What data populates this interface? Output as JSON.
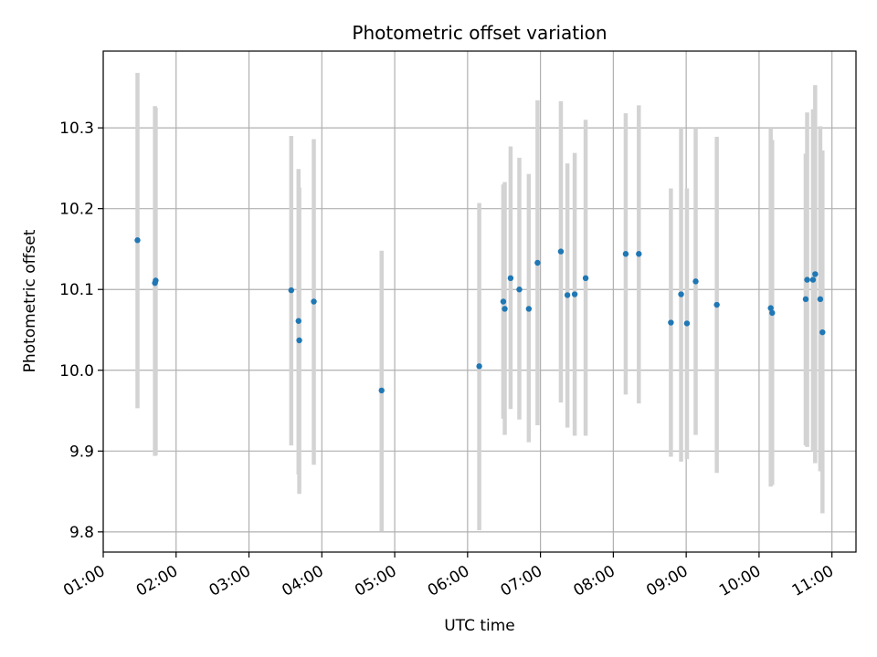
{
  "chart_data": {
    "type": "scatter",
    "title": "Photometric offset variation",
    "xlabel": "UTC time",
    "ylabel": "Photometric offset",
    "x_unit": "hours UTC",
    "xlim": [
      1.0,
      11.33
    ],
    "ylim": [
      9.775,
      10.395
    ],
    "x_ticks": [
      {
        "value": 1,
        "label": "01:00"
      },
      {
        "value": 2,
        "label": "02:00"
      },
      {
        "value": 3,
        "label": "03:00"
      },
      {
        "value": 4,
        "label": "04:00"
      },
      {
        "value": 5,
        "label": "05:00"
      },
      {
        "value": 6,
        "label": "06:00"
      },
      {
        "value": 7,
        "label": "07:00"
      },
      {
        "value": 8,
        "label": "08:00"
      },
      {
        "value": 9,
        "label": "09:00"
      },
      {
        "value": 10,
        "label": "10:00"
      },
      {
        "value": 11,
        "label": "11:00"
      }
    ],
    "y_ticks": [
      {
        "value": 9.8,
        "label": "9.8"
      },
      {
        "value": 9.9,
        "label": "9.9"
      },
      {
        "value": 10.0,
        "label": "10.0"
      },
      {
        "value": 10.1,
        "label": "10.1"
      },
      {
        "value": 10.2,
        "label": "10.2"
      },
      {
        "value": 10.3,
        "label": "10.3"
      }
    ],
    "grid": true,
    "legend": "none",
    "point_color": "#1f77b4",
    "errorbar_color": "#d3d3d3",
    "points": [
      {
        "x": 1.47,
        "y": 10.161,
        "ylow": 9.953,
        "yhigh": 10.368
      },
      {
        "x": 1.71,
        "y": 10.108,
        "ylow": 9.894,
        "yhigh": 10.327
      },
      {
        "x": 1.72,
        "y": 10.111,
        "ylow": 9.895,
        "yhigh": 10.325
      },
      {
        "x": 3.58,
        "y": 10.099,
        "ylow": 9.907,
        "yhigh": 10.29
      },
      {
        "x": 3.68,
        "y": 10.061,
        "ylow": 9.871,
        "yhigh": 10.249
      },
      {
        "x": 3.69,
        "y": 10.037,
        "ylow": 9.847,
        "yhigh": 10.226
      },
      {
        "x": 3.89,
        "y": 10.085,
        "ylow": 9.883,
        "yhigh": 10.286
      },
      {
        "x": 4.82,
        "y": 9.975,
        "ylow": 9.801,
        "yhigh": 10.148
      },
      {
        "x": 6.16,
        "y": 10.005,
        "ylow": 9.802,
        "yhigh": 10.207
      },
      {
        "x": 6.49,
        "y": 10.085,
        "ylow": 9.94,
        "yhigh": 10.23
      },
      {
        "x": 6.51,
        "y": 10.076,
        "ylow": 9.92,
        "yhigh": 10.233
      },
      {
        "x": 6.59,
        "y": 10.114,
        "ylow": 9.952,
        "yhigh": 10.277
      },
      {
        "x": 6.71,
        "y": 10.1,
        "ylow": 9.939,
        "yhigh": 10.263
      },
      {
        "x": 6.84,
        "y": 10.076,
        "ylow": 9.911,
        "yhigh": 10.243
      },
      {
        "x": 6.96,
        "y": 10.133,
        "ylow": 9.932,
        "yhigh": 10.334
      },
      {
        "x": 7.28,
        "y": 10.147,
        "ylow": 9.96,
        "yhigh": 10.333
      },
      {
        "x": 7.37,
        "y": 10.093,
        "ylow": 9.929,
        "yhigh": 10.256
      },
      {
        "x": 7.47,
        "y": 10.094,
        "ylow": 9.919,
        "yhigh": 10.269
      },
      {
        "x": 7.62,
        "y": 10.114,
        "ylow": 9.919,
        "yhigh": 10.31
      },
      {
        "x": 8.17,
        "y": 10.144,
        "ylow": 9.97,
        "yhigh": 10.318
      },
      {
        "x": 8.35,
        "y": 10.144,
        "ylow": 9.959,
        "yhigh": 10.328
      },
      {
        "x": 8.79,
        "y": 10.059,
        "ylow": 9.893,
        "yhigh": 10.225
      },
      {
        "x": 8.93,
        "y": 10.094,
        "ylow": 9.887,
        "yhigh": 10.3
      },
      {
        "x": 9.01,
        "y": 10.058,
        "ylow": 9.89,
        "yhigh": 10.225
      },
      {
        "x": 9.13,
        "y": 10.11,
        "ylow": 9.92,
        "yhigh": 10.3
      },
      {
        "x": 9.42,
        "y": 10.081,
        "ylow": 9.873,
        "yhigh": 10.289
      },
      {
        "x": 10.16,
        "y": 10.077,
        "ylow": 9.856,
        "yhigh": 10.3
      },
      {
        "x": 10.18,
        "y": 10.071,
        "ylow": 9.858,
        "yhigh": 10.285
      },
      {
        "x": 10.64,
        "y": 10.088,
        "ylow": 9.907,
        "yhigh": 10.268
      },
      {
        "x": 10.66,
        "y": 10.112,
        "ylow": 9.905,
        "yhigh": 10.319
      },
      {
        "x": 10.74,
        "y": 10.112,
        "ylow": 9.9,
        "yhigh": 10.323
      },
      {
        "x": 10.77,
        "y": 10.119,
        "ylow": 9.885,
        "yhigh": 10.353
      },
      {
        "x": 10.84,
        "y": 10.088,
        "ylow": 9.875,
        "yhigh": 10.302
      },
      {
        "x": 10.87,
        "y": 10.047,
        "ylow": 9.823,
        "yhigh": 10.272
      }
    ]
  }
}
